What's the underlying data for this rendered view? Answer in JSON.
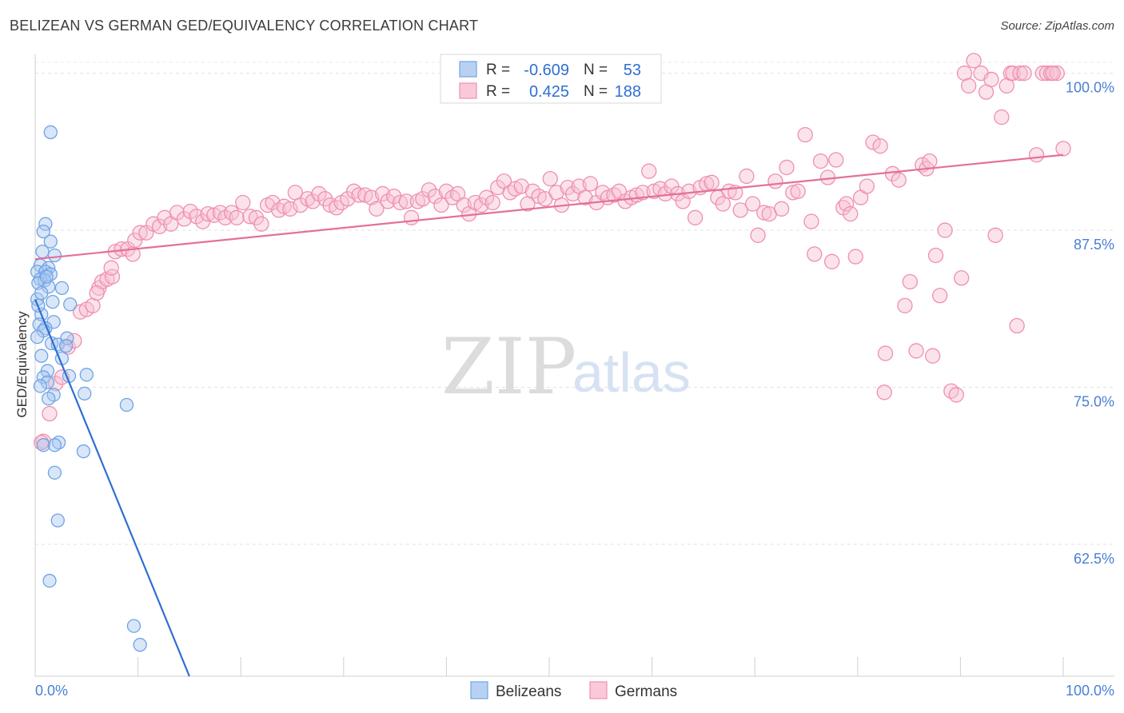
{
  "header": {
    "title": "BELIZEAN VS GERMAN GED/EQUIVALENCY CORRELATION CHART",
    "source": "Source: ZipAtlas.com"
  },
  "watermark": {
    "zip": "ZIP",
    "atlas": "atlas"
  },
  "colors": {
    "blue": "#6fa3e6",
    "blue_fill": "#a9c8f0",
    "blue_line": "#2f6fd1",
    "pink": "#ef8fb0",
    "pink_fill": "#f7c0d3",
    "pink_line": "#e4709a",
    "axis_label": "#4a7fd4"
  },
  "legend": {
    "rows": [
      {
        "r_label": "R =",
        "r_value": "-0.609",
        "n_label": "N =",
        "n_value": "53"
      },
      {
        "r_label": "R =",
        "r_value": "0.425",
        "n_label": "N =",
        "n_value": "188"
      }
    ]
  },
  "chart_data": {
    "type": "scatter",
    "title": "BELIZEAN VS GERMAN GED/EQUIVALENCY CORRELATION CHART",
    "xlabel": "",
    "ylabel": "GED/Equivalency",
    "xlim": [
      0,
      100
    ],
    "ylim": [
      52,
      101.5
    ],
    "x_tick_labels": [
      "0.0%",
      "100.0%"
    ],
    "y_ticks": [
      62.5,
      75.0,
      87.5,
      100.0
    ],
    "y_tick_labels": [
      "62.5%",
      "75.0%",
      "87.5%",
      "100.0%"
    ],
    "grid": true,
    "series": [
      {
        "name": "Belizeans",
        "color": "#6fa3e6",
        "trend": {
          "x": [
            0,
            15
          ],
          "y": [
            82.0,
            52.0
          ]
        },
        "points": [
          [
            1.5,
            95.3
          ],
          [
            1.0,
            88.0
          ],
          [
            0.8,
            87.4
          ],
          [
            1.5,
            86.6
          ],
          [
            0.7,
            85.8
          ],
          [
            1.9,
            85.5
          ],
          [
            0.5,
            84.7
          ],
          [
            1.3,
            84.5
          ],
          [
            0.2,
            84.2
          ],
          [
            1.0,
            84.2
          ],
          [
            1.5,
            84.0
          ],
          [
            0.5,
            83.6
          ],
          [
            0.9,
            83.5
          ],
          [
            0.3,
            83.3
          ],
          [
            1.3,
            83.0
          ],
          [
            2.6,
            82.9
          ],
          [
            0.2,
            82.0
          ],
          [
            1.7,
            81.8
          ],
          [
            3.4,
            81.6
          ],
          [
            0.6,
            80.8
          ],
          [
            1.8,
            80.2
          ],
          [
            0.4,
            80.0
          ],
          [
            1.0,
            79.7
          ],
          [
            0.8,
            79.5
          ],
          [
            0.2,
            79.0
          ],
          [
            3.1,
            78.9
          ],
          [
            1.6,
            78.5
          ],
          [
            2.2,
            78.4
          ],
          [
            3.0,
            78.3
          ],
          [
            2.6,
            77.3
          ],
          [
            0.6,
            77.5
          ],
          [
            1.2,
            76.3
          ],
          [
            5.0,
            76.0
          ],
          [
            3.3,
            75.9
          ],
          [
            0.8,
            75.8
          ],
          [
            1.2,
            75.4
          ],
          [
            0.5,
            75.1
          ],
          [
            1.8,
            74.4
          ],
          [
            4.8,
            74.5
          ],
          [
            1.3,
            74.1
          ],
          [
            8.9,
            73.6
          ],
          [
            0.8,
            70.4
          ],
          [
            2.3,
            70.6
          ],
          [
            1.9,
            70.4
          ],
          [
            4.7,
            69.9
          ],
          [
            1.9,
            68.2
          ],
          [
            2.2,
            64.4
          ],
          [
            1.4,
            59.6
          ],
          [
            9.6,
            56.0
          ],
          [
            10.2,
            54.5
          ],
          [
            0.3,
            81.5
          ],
          [
            0.6,
            82.5
          ],
          [
            1.1,
            83.8
          ]
        ]
      },
      {
        "name": "Germans",
        "color": "#ef8fb0",
        "trend": {
          "x": [
            0,
            100
          ],
          "y": [
            85.2,
            93.5
          ]
        },
        "points": [
          [
            0.8,
            70.7
          ],
          [
            1.4,
            72.9
          ],
          [
            2.0,
            75.3
          ],
          [
            2.6,
            75.8
          ],
          [
            3.2,
            78.2
          ],
          [
            3.8,
            78.7
          ],
          [
            4.4,
            81.0
          ],
          [
            5.0,
            81.2
          ],
          [
            5.6,
            81.5
          ],
          [
            6.2,
            82.9
          ],
          [
            6.5,
            83.4
          ],
          [
            7.0,
            83.6
          ],
          [
            7.5,
            83.8
          ],
          [
            7.4,
            84.5
          ],
          [
            7.8,
            85.8
          ],
          [
            8.4,
            86.0
          ],
          [
            9.0,
            86.0
          ],
          [
            9.5,
            85.6
          ],
          [
            9.7,
            86.7
          ],
          [
            10.2,
            87.3
          ],
          [
            10.8,
            87.3
          ],
          [
            11.5,
            88.0
          ],
          [
            12.1,
            87.8
          ],
          [
            12.6,
            88.5
          ],
          [
            13.2,
            88.0
          ],
          [
            13.8,
            88.9
          ],
          [
            14.5,
            88.4
          ],
          [
            15.1,
            89.0
          ],
          [
            15.7,
            88.6
          ],
          [
            16.3,
            88.2
          ],
          [
            16.8,
            88.8
          ],
          [
            17.4,
            88.7
          ],
          [
            18.0,
            88.9
          ],
          [
            18.5,
            88.5
          ],
          [
            19.1,
            88.9
          ],
          [
            19.6,
            88.5
          ],
          [
            20.2,
            89.7
          ],
          [
            20.9,
            88.6
          ],
          [
            21.5,
            88.5
          ],
          [
            22.0,
            88.0
          ],
          [
            22.6,
            89.5
          ],
          [
            23.1,
            89.7
          ],
          [
            23.7,
            89.1
          ],
          [
            24.2,
            89.4
          ],
          [
            24.8,
            89.2
          ],
          [
            25.3,
            90.5
          ],
          [
            25.8,
            89.5
          ],
          [
            26.5,
            90.0
          ],
          [
            27.0,
            89.8
          ],
          [
            27.6,
            90.4
          ],
          [
            28.2,
            90.0
          ],
          [
            28.7,
            89.5
          ],
          [
            29.3,
            89.3
          ],
          [
            29.8,
            89.7
          ],
          [
            30.4,
            90.0
          ],
          [
            31.0,
            90.6
          ],
          [
            31.5,
            90.3
          ],
          [
            32.1,
            90.3
          ],
          [
            32.7,
            90.1
          ],
          [
            33.2,
            89.2
          ],
          [
            33.8,
            90.4
          ],
          [
            34.3,
            89.8
          ],
          [
            34.9,
            90.2
          ],
          [
            35.5,
            89.7
          ],
          [
            36.1,
            89.8
          ],
          [
            36.6,
            88.5
          ],
          [
            37.2,
            89.8
          ],
          [
            37.7,
            90.0
          ],
          [
            38.3,
            90.7
          ],
          [
            38.9,
            90.2
          ],
          [
            39.5,
            89.5
          ],
          [
            40.0,
            90.6
          ],
          [
            40.6,
            90.1
          ],
          [
            41.1,
            90.4
          ],
          [
            41.7,
            89.5
          ],
          [
            42.2,
            88.8
          ],
          [
            42.8,
            89.7
          ],
          [
            43.4,
            89.5
          ],
          [
            43.9,
            90.1
          ],
          [
            44.5,
            89.7
          ],
          [
            45.0,
            90.9
          ],
          [
            45.6,
            91.4
          ],
          [
            46.2,
            90.5
          ],
          [
            46.7,
            90.8
          ],
          [
            47.3,
            91.0
          ],
          [
            47.9,
            89.6
          ],
          [
            48.4,
            90.6
          ],
          [
            49.0,
            90.2
          ],
          [
            49.6,
            90.0
          ],
          [
            50.1,
            91.6
          ],
          [
            50.7,
            90.5
          ],
          [
            51.2,
            89.5
          ],
          [
            51.8,
            90.9
          ],
          [
            52.3,
            90.4
          ],
          [
            52.9,
            91.0
          ],
          [
            53.5,
            90.1
          ],
          [
            54.0,
            91.2
          ],
          [
            54.6,
            89.7
          ],
          [
            55.2,
            90.5
          ],
          [
            55.7,
            90.1
          ],
          [
            56.3,
            90.3
          ],
          [
            56.8,
            90.6
          ],
          [
            57.4,
            89.8
          ],
          [
            58.0,
            90.1
          ],
          [
            58.5,
            90.3
          ],
          [
            59.1,
            90.5
          ],
          [
            59.7,
            92.2
          ],
          [
            60.2,
            90.6
          ],
          [
            60.8,
            90.8
          ],
          [
            61.3,
            90.4
          ],
          [
            61.9,
            91.0
          ],
          [
            62.5,
            90.4
          ],
          [
            63.0,
            89.8
          ],
          [
            63.6,
            90.6
          ],
          [
            64.2,
            88.5
          ],
          [
            64.7,
            90.9
          ],
          [
            65.3,
            91.2
          ],
          [
            65.8,
            91.3
          ],
          [
            66.4,
            90.1
          ],
          [
            66.9,
            89.6
          ],
          [
            67.5,
            90.6
          ],
          [
            68.1,
            90.5
          ],
          [
            68.6,
            89.1
          ],
          [
            69.2,
            91.8
          ],
          [
            69.8,
            89.6
          ],
          [
            70.3,
            87.1
          ],
          [
            70.9,
            88.9
          ],
          [
            71.4,
            88.8
          ],
          [
            72.0,
            91.4
          ],
          [
            72.6,
            89.2
          ],
          [
            73.1,
            92.5
          ],
          [
            73.7,
            90.5
          ],
          [
            74.2,
            90.6
          ],
          [
            74.9,
            95.1
          ],
          [
            75.5,
            88.2
          ],
          [
            75.8,
            85.6
          ],
          [
            76.4,
            93.0
          ],
          [
            77.1,
            91.7
          ],
          [
            77.5,
            85.0
          ],
          [
            77.9,
            93.1
          ],
          [
            78.6,
            89.3
          ],
          [
            78.9,
            89.6
          ],
          [
            79.3,
            88.8
          ],
          [
            79.8,
            85.4
          ],
          [
            80.3,
            90.1
          ],
          [
            80.9,
            91.0
          ],
          [
            81.5,
            94.5
          ],
          [
            82.2,
            94.2
          ],
          [
            82.7,
            77.7
          ],
          [
            82.6,
            74.6
          ],
          [
            83.4,
            92.0
          ],
          [
            84.0,
            91.5
          ],
          [
            84.6,
            81.5
          ],
          [
            85.1,
            83.4
          ],
          [
            85.7,
            77.9
          ],
          [
            86.3,
            92.7
          ],
          [
            86.7,
            92.4
          ],
          [
            87.0,
            93.0
          ],
          [
            87.3,
            77.5
          ],
          [
            87.6,
            85.5
          ],
          [
            88.0,
            82.3
          ],
          [
            88.5,
            87.5
          ],
          [
            89.1,
            74.7
          ],
          [
            89.6,
            74.4
          ],
          [
            90.1,
            83.7
          ],
          [
            90.4,
            100.0
          ],
          [
            90.8,
            99.0
          ],
          [
            91.3,
            101.0
          ],
          [
            92.0,
            100.0
          ],
          [
            92.5,
            98.5
          ],
          [
            93.0,
            99.5
          ],
          [
            93.4,
            87.1
          ],
          [
            94.0,
            96.5
          ],
          [
            94.5,
            99.0
          ],
          [
            94.9,
            100.0
          ],
          [
            95.1,
            100.0
          ],
          [
            95.5,
            79.9
          ],
          [
            95.8,
            100.0
          ],
          [
            96.2,
            100.0
          ],
          [
            97.4,
            93.5
          ],
          [
            98.0,
            100.0
          ],
          [
            98.4,
            100.0
          ],
          [
            98.8,
            100.0
          ],
          [
            99.4,
            100.0
          ],
          [
            100.0,
            94.0
          ],
          [
            99.0,
            100.0
          ],
          [
            0.6,
            70.6
          ],
          [
            6.0,
            82.5
          ]
        ]
      }
    ]
  },
  "bottom_legend": {
    "items": [
      {
        "label": "Belizeans"
      },
      {
        "label": "Germans"
      }
    ]
  }
}
